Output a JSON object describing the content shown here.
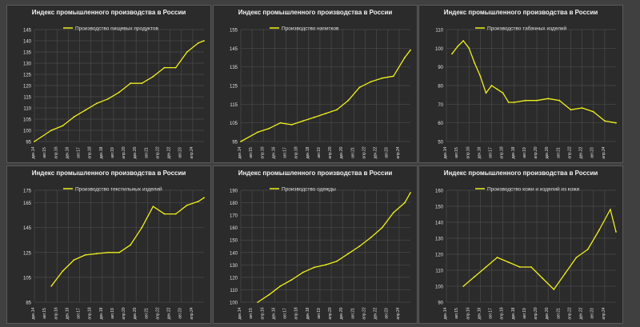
{
  "chart_data": [
    {
      "type": "line",
      "title": "Индекс промышленного производства в России",
      "legend": "Производство пищевых продуктов",
      "ylim": [
        95,
        145
      ],
      "yticks": [
        95,
        100,
        105,
        110,
        115,
        120,
        125,
        130,
        135,
        140,
        145
      ],
      "ytick_labels": [
        "95",
        "100",
        "105",
        "110",
        "115",
        "120",
        "125",
        "130",
        "135",
        "140",
        "145"
      ],
      "xtick_labels": [
        "дек.14",
        "авг.15",
        "апр.16",
        "дек.16",
        "авг.17",
        "апр.18",
        "дек.18",
        "авг.19",
        "апр.20",
        "дек.20",
        "авг.21",
        "апр.22",
        "дек.22",
        "авг.23",
        "апр.24"
      ],
      "series": [
        {
          "x": [
            "дек.14",
            "дек.15",
            "авг.16",
            "апр.17",
            "дек.17",
            "авг.18",
            "апр.19",
            "дек.19",
            "авг.20",
            "апр.21",
            "дек.21",
            "авг.22",
            "апр.23",
            "дек.23",
            "авг.24",
            "дек.24"
          ],
          "y": [
            95,
            100,
            102,
            106,
            109,
            112,
            114,
            117,
            121,
            121,
            124,
            128,
            128,
            135,
            139,
            140
          ]
        }
      ]
    },
    {
      "type": "line",
      "title": "Индекс промышленного производства в России",
      "legend": "Производство напитков",
      "ylim": [
        95,
        155
      ],
      "yticks": [
        95,
        105,
        115,
        125,
        135,
        145,
        155
      ],
      "ytick_labels": [
        "95",
        "105",
        "115",
        "125",
        "135",
        "145",
        "155"
      ],
      "xtick_labels": [
        "дек.14",
        "авг.15",
        "апр.16",
        "дек.16",
        "авг.17",
        "апр.18",
        "дек.18",
        "авг.19",
        "апр.20",
        "дек.20",
        "авг.21",
        "апр.22",
        "дек.22",
        "авг.23",
        "апр.24"
      ],
      "series": [
        {
          "x": [
            "дек.14",
            "дек.15",
            "авг.16",
            "апр.17",
            "дек.17",
            "авг.18",
            "апр.19",
            "дек.19",
            "авг.20",
            "апр.21",
            "дек.21",
            "авг.22",
            "апр.23",
            "дек.23",
            "авг.24",
            "дек.24"
          ],
          "y": [
            95,
            100,
            102,
            105,
            104,
            106,
            108,
            110,
            112,
            117,
            124,
            127,
            129,
            130,
            140,
            144
          ]
        }
      ]
    },
    {
      "type": "line",
      "title": "Индекс промышленного производства в России",
      "legend": "Производство табачных изделий",
      "ylim": [
        50,
        110
      ],
      "yticks": [
        50,
        60,
        70,
        80,
        90,
        100,
        110
      ],
      "ytick_labels": [
        "50",
        "60",
        "70",
        "80",
        "90",
        "100",
        "110"
      ],
      "xtick_labels": [
        "дек.14",
        "авг.15",
        "апр.16",
        "дек.16",
        "авг.17",
        "апр.18",
        "дек.18",
        "авг.19",
        "апр.20",
        "дек.20",
        "авг.21",
        "апр.22",
        "дек.22",
        "авг.23",
        "апр.24"
      ],
      "series": [
        {
          "x": [
            "апр.15",
            "авг.15",
            "дек.15",
            "апр.16",
            "авг.16",
            "дек.16",
            "апр.17",
            "авг.17",
            "дек.17",
            "апр.18",
            "авг.18",
            "дек.18",
            "авг.19",
            "апр.20",
            "дек.20",
            "авг.21",
            "апр.22",
            "дек.22",
            "авг.23",
            "апр.24",
            "дек.24"
          ],
          "y": [
            97,
            101,
            104,
            100,
            92,
            85,
            76,
            80,
            78,
            76,
            71,
            71,
            72,
            72,
            73,
            72,
            67,
            68,
            66,
            61,
            60
          ]
        }
      ]
    },
    {
      "type": "line",
      "title": "Индекс промышленного производства в России",
      "legend": "Производство текстильных изделий",
      "ylim": [
        85,
        175
      ],
      "yticks": [
        85,
        105,
        125,
        145,
        165,
        175
      ],
      "ytick_labels": [
        "85",
        "105",
        "125",
        "145",
        "165",
        "175"
      ],
      "xtick_labels": [
        "дек.14",
        "авг.15",
        "апр.16",
        "дек.16",
        "авг.17",
        "апр.18",
        "дек.18",
        "авг.19",
        "апр.20",
        "дек.20",
        "авг.21",
        "апр.22",
        "дек.22",
        "авг.23",
        "апр.24"
      ],
      "series": [
        {
          "x": [
            "дек.15",
            "авг.16",
            "апр.17",
            "дек.17",
            "авг.18",
            "апр.19",
            "дек.19",
            "авг.20",
            "апр.21",
            "дек.21",
            "авг.22",
            "апр.23",
            "дек.23",
            "авг.24",
            "дек.24"
          ],
          "y": [
            98,
            110,
            119,
            123,
            124,
            125,
            125,
            131,
            145,
            162,
            156,
            156,
            163,
            166,
            169
          ]
        }
      ]
    },
    {
      "type": "line",
      "title": "Индекс промышленного производства в России",
      "legend": "Производство одежды",
      "ylim": [
        100,
        190
      ],
      "yticks": [
        100,
        110,
        120,
        130,
        140,
        150,
        160,
        170,
        180,
        190
      ],
      "ytick_labels": [
        "100",
        "110",
        "120",
        "130",
        "140",
        "150",
        "160",
        "170",
        "180",
        "190"
      ],
      "xtick_labels": [
        "дек.14",
        "авг.15",
        "апр.16",
        "дек.16",
        "авг.17",
        "апр.18",
        "дек.18",
        "авг.19",
        "апр.20",
        "дек.20",
        "авг.21",
        "апр.22",
        "дек.22",
        "авг.23",
        "апр.24"
      ],
      "series": [
        {
          "x": [
            "дек.15",
            "авг.16",
            "апр.17",
            "дек.17",
            "авг.18",
            "апр.19",
            "дек.19",
            "авг.20",
            "апр.21",
            "дек.21",
            "авг.22",
            "апр.23",
            "дек.23",
            "авг.24",
            "дек.24"
          ],
          "y": [
            100,
            106,
            113,
            118,
            124,
            128,
            130,
            133,
            139,
            145,
            152,
            160,
            172,
            180,
            188
          ]
        }
      ]
    },
    {
      "type": "line",
      "title": "Индекс промышленного производства в России",
      "legend": "Производство кожи и изделий из кожи",
      "ylim": [
        90,
        160
      ],
      "yticks": [
        90,
        100,
        110,
        120,
        130,
        140,
        150,
        160
      ],
      "ytick_labels": [
        "90",
        "100",
        "110",
        "120",
        "130",
        "140",
        "150",
        "160"
      ],
      "xtick_labels": [
        "дек.14",
        "авг.15",
        "апр.16",
        "дек.16",
        "авг.17",
        "апр.18",
        "дек.18",
        "авг.19",
        "апр.20",
        "дек.20",
        "авг.21",
        "апр.22",
        "дек.22",
        "авг.23",
        "апр.24"
      ],
      "series": [
        {
          "x": [
            "дек.15",
            "авг.16",
            "апр.17",
            "дек.17",
            "авг.18",
            "апр.19",
            "дек.19",
            "авг.20",
            "апр.21",
            "дек.21",
            "авг.22",
            "апр.23",
            "дек.23",
            "авг.24",
            "дек.24"
          ],
          "y": [
            100,
            106,
            112,
            118,
            115,
            112,
            112,
            105,
            98,
            108,
            118,
            123,
            135,
            148,
            134
          ]
        }
      ]
    }
  ],
  "style": {
    "line_color": "#f0f01e",
    "grid_color": "#4a4a4a",
    "text_color": "#e0e0e0"
  }
}
